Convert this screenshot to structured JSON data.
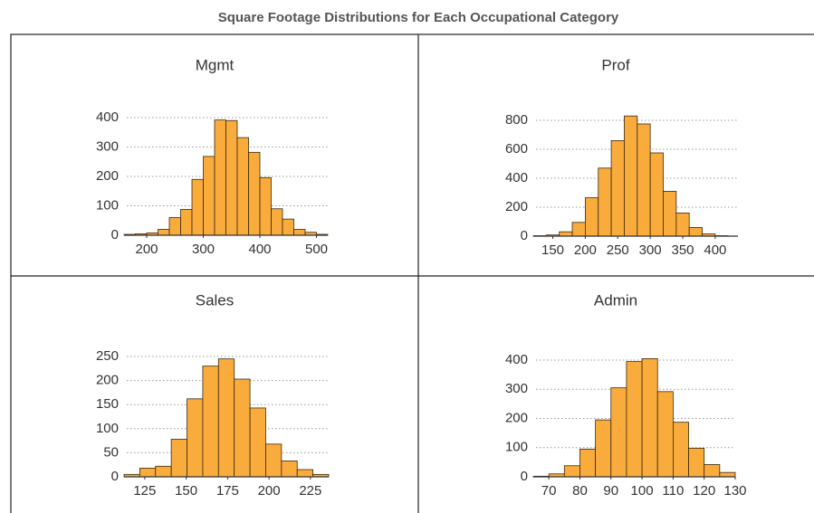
{
  "title": "Square Footage Distributions for Each Occupational Category",
  "chart_data": [
    {
      "type": "histogram",
      "title": "Mgmt",
      "color": "#f9ab3c",
      "bins": [
        160,
        180,
        200,
        220,
        240,
        260,
        280,
        300,
        320,
        340,
        360,
        380,
        400,
        420,
        440,
        460,
        480,
        500,
        520
      ],
      "values": [
        3,
        5,
        8,
        20,
        60,
        88,
        190,
        268,
        392,
        390,
        332,
        282,
        196,
        90,
        55,
        20,
        10,
        3
      ],
      "xlim": [
        160,
        520
      ],
      "xticks": [
        200,
        300,
        400,
        500
      ],
      "ylim": [
        0,
        420
      ],
      "yticks": [
        0,
        100,
        200,
        300,
        400
      ],
      "grid": true
    },
    {
      "type": "histogram",
      "title": "Prof",
      "color": "#f9ab3c",
      "bins": [
        120,
        140,
        160,
        180,
        200,
        220,
        240,
        260,
        280,
        300,
        320,
        340,
        360,
        380,
        400,
        420
      ],
      "values": [
        3,
        8,
        30,
        95,
        265,
        470,
        660,
        830,
        775,
        575,
        310,
        160,
        60,
        15,
        3
      ],
      "xlim": [
        120,
        435
      ],
      "xticks": [
        150,
        200,
        250,
        300,
        350,
        400
      ],
      "ylim": [
        0,
        850
      ],
      "yticks": [
        0,
        200,
        400,
        600,
        800
      ],
      "grid": true
    },
    {
      "type": "histogram",
      "title": "Sales",
      "color": "#f9ab3c",
      "bins": [
        112.5,
        122,
        131.5,
        141,
        150.5,
        160,
        169.5,
        179,
        188.5,
        198,
        207.5,
        217,
        226.5,
        236
      ],
      "values": [
        5,
        18,
        22,
        78,
        162,
        230,
        245,
        203,
        143,
        68,
        33,
        15,
        5
      ],
      "xlim": [
        112.5,
        236
      ],
      "xticks": [
        125,
        150,
        175,
        200,
        225
      ],
      "ylim": [
        0,
        260
      ],
      "yticks": [
        0,
        50,
        100,
        150,
        200,
        250
      ],
      "grid": true
    },
    {
      "type": "histogram",
      "title": "Admin",
      "color": "#f9ab3c",
      "bins": [
        65,
        70,
        75,
        80,
        85,
        90,
        95,
        100,
        105,
        110,
        115,
        120,
        125,
        130
      ],
      "values": [
        2,
        10,
        38,
        95,
        195,
        305,
        395,
        405,
        292,
        187,
        98,
        42,
        15
      ],
      "xlim": [
        65,
        130
      ],
      "xticks": [
        70,
        80,
        90,
        100,
        110,
        120,
        130
      ],
      "ylim": [
        0,
        420
      ],
      "yticks": [
        0,
        100,
        200,
        300,
        400
      ],
      "grid": true
    }
  ]
}
